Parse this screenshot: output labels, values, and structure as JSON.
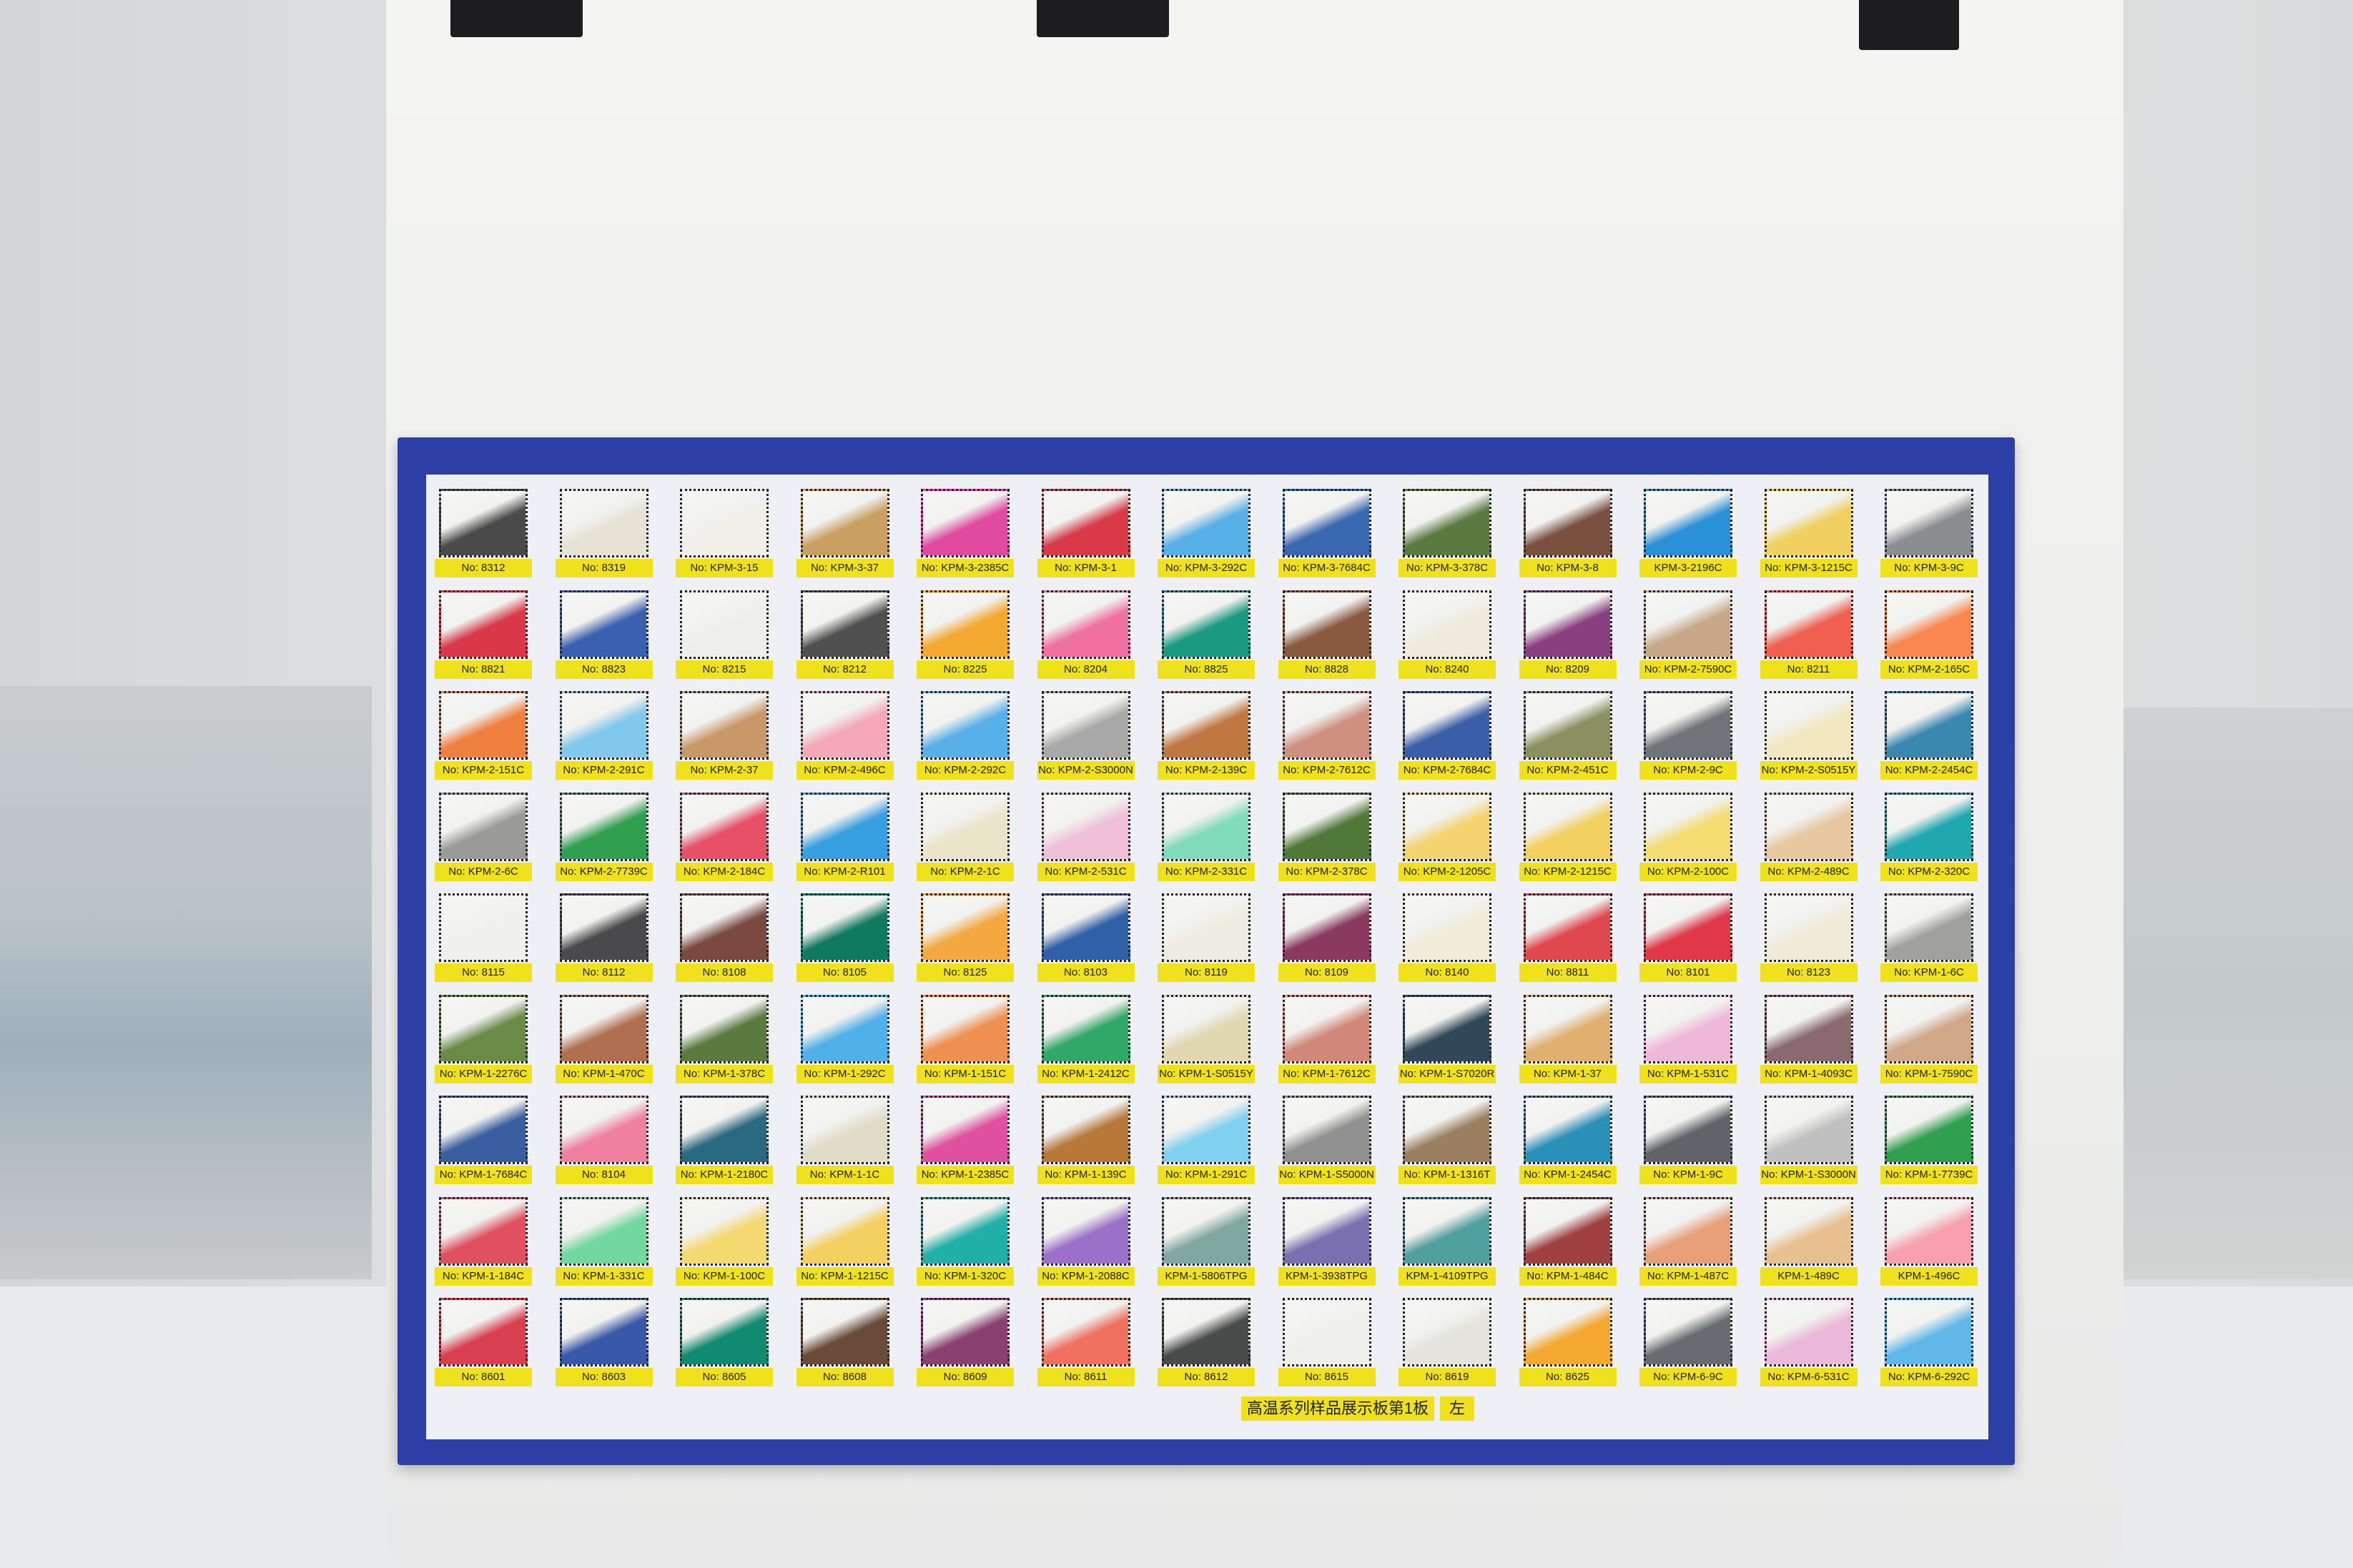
{
  "scene": {
    "frame_color": "#2c3fa6",
    "label_color": "#efe21c",
    "board_color": "#eef0f6"
  },
  "caption": {
    "title": "高温系列样品展示板第1板",
    "side": "左"
  },
  "rows": [
    [
      [
        "No: 8312",
        "#4a4a4a"
      ],
      [
        "No: 8319",
        "#e6e2d6"
      ],
      [
        "No: KPM-3-15",
        "#f0efe8"
      ],
      [
        "No: KPM-3-37",
        "#c9a060"
      ],
      [
        "No: KPM-3-2385C",
        "#e04aa0"
      ],
      [
        "No: KPM-3-1",
        "#d83a48"
      ],
      [
        "No: KPM-3-292C",
        "#58b0e8"
      ],
      [
        "No: KPM-3-7684C",
        "#3a68b0"
      ],
      [
        "No: KPM-3-378C",
        "#5a7a40"
      ],
      [
        "No: KPM-3-8",
        "#7a5040"
      ],
      [
        "KPM-3-2196C",
        "#2a90d8"
      ],
      [
        "No: KPM-3-1215C",
        "#f0d060"
      ],
      [
        "No: KPM-3-9C",
        "#8a8e90"
      ]
    ],
    [
      [
        "No: 8821",
        "#d83848"
      ],
      [
        "No: 8823",
        "#3a60b0"
      ],
      [
        "No: 8215",
        "#eeeeea"
      ],
      [
        "No: 8212",
        "#505050"
      ],
      [
        "No: 8225",
        "#f4a830"
      ],
      [
        "No: 8204",
        "#f070a0"
      ],
      [
        "No: 8825",
        "#1a9a80"
      ],
      [
        "No: 8828",
        "#8a5a40"
      ],
      [
        "No: 8240",
        "#eeeade"
      ],
      [
        "No: 8209",
        "#8a4080"
      ],
      [
        "No: KPM-2-7590C",
        "#c8a888"
      ],
      [
        "No: 8211",
        "#f06050"
      ],
      [
        "No: KPM-2-165C",
        "#f88850"
      ]
    ],
    [
      [
        "No: KPM-2-151C",
        "#f08040"
      ],
      [
        "No: KPM-2-291C",
        "#80c8ec"
      ],
      [
        "No: KPM-2-37",
        "#c89868"
      ],
      [
        "No: KPM-2-496C",
        "#f4a8b8"
      ],
      [
        "No: KPM-2-292C",
        "#58b0e8"
      ],
      [
        "No: KPM-2-S3000N",
        "#a8a8a8"
      ],
      [
        "No: KPM-2-139C",
        "#c07840"
      ],
      [
        "No: KPM-2-7612C",
        "#d09080"
      ],
      [
        "No: KPM-2-7684C",
        "#3a5ea8"
      ],
      [
        "No: KPM-2-451C",
        "#8a9060"
      ],
      [
        "No: KPM-2-9C",
        "#707478"
      ],
      [
        "No: KPM-2-S0515Y",
        "#f2e8c0"
      ],
      [
        "No: KPM-2-2454C",
        "#3a88b0"
      ]
    ],
    [
      [
        "No: KPM-2-6C",
        "#9a9a98"
      ],
      [
        "No: KPM-2-7739C",
        "#30a050"
      ],
      [
        "No: KPM-2-184C",
        "#e85068"
      ],
      [
        "No: KPM-2-R101",
        "#38a0e0"
      ],
      [
        "No: KPM-2-1C",
        "#ece4c8"
      ],
      [
        "No: KPM-2-531C",
        "#f0c0d8"
      ],
      [
        "No: KPM-2-331C",
        "#80dcb8"
      ],
      [
        "No: KPM-2-378C",
        "#507838"
      ],
      [
        "No: KPM-2-1205C",
        "#f4d470"
      ],
      [
        "No: KPM-2-1215C",
        "#f4d060"
      ],
      [
        "No: KPM-2-100C",
        "#f4dc70"
      ],
      [
        "No: KPM-2-489C",
        "#e8c8a0"
      ],
      [
        "No: KPM-2-320C",
        "#20a8b0"
      ]
    ],
    [
      [
        "No: 8115",
        "#f0f0ee"
      ],
      [
        "No: 8112",
        "#4a4a4c"
      ],
      [
        "No: 8108",
        "#7a4a40"
      ],
      [
        "No: 8105",
        "#107a60"
      ],
      [
        "No: 8125",
        "#f4a840"
      ],
      [
        "No: 8103",
        "#3060a8"
      ],
      [
        "No: 8119",
        "#eeece0"
      ],
      [
        "No: 8109",
        "#8a3a60"
      ],
      [
        "No: 8140",
        "#f0ecd8"
      ],
      [
        "No: 8811",
        "#e04850"
      ],
      [
        "No: 8101",
        "#e03848"
      ],
      [
        "No: 8123",
        "#f0ead8"
      ],
      [
        "No: KPM-1-6C",
        "#a0a09c"
      ]
    ],
    [
      [
        "No: KPM-1-2276C",
        "#6a8a48"
      ],
      [
        "No: KPM-1-470C",
        "#b07050"
      ],
      [
        "No: KPM-1-378C",
        "#5a7a40"
      ],
      [
        "No: KPM-1-292C",
        "#50b0e8"
      ],
      [
        "No: KPM-1-151C",
        "#f09050"
      ],
      [
        "No: KPM-1-2412C",
        "#30a868"
      ],
      [
        "No: KPM-1-S0515Y",
        "#e0d8b0"
      ],
      [
        "No: KPM-1-7612C",
        "#d08878"
      ],
      [
        "No: KPM-1-S7020R",
        "#304858"
      ],
      [
        "No: KPM-1-37",
        "#e0b070"
      ],
      [
        "No: KPM-1-531C",
        "#f0b8d8"
      ],
      [
        "No: KPM-1-4093C",
        "#8a6a70"
      ],
      [
        "No: KPM-1-7590C",
        "#d0a888"
      ]
    ],
    [
      [
        "No: KPM-1-7684C",
        "#3a5ea0"
      ],
      [
        "No: 8104",
        "#f080a0"
      ],
      [
        "No: KPM-1-2180C",
        "#2a6a80"
      ],
      [
        "No: KPM-1-1C",
        "#e0dcc8"
      ],
      [
        "No: KPM-1-2385C",
        "#e050a0"
      ],
      [
        "No: KPM-1-139C",
        "#b87838"
      ],
      [
        "No: KPM-1-291C",
        "#80d0f0"
      ],
      [
        "No: KPM-1-S5000N",
        "#909090"
      ],
      [
        "No: KPM-1-1316T",
        "#9a8060"
      ],
      [
        "No: KPM-1-2454C",
        "#2a90b8"
      ],
      [
        "No: KPM-1-9C",
        "#606468"
      ],
      [
        "No: KPM-1-S3000N",
        "#c0c0c0"
      ],
      [
        "No: KPM-1-7739C",
        "#30a050"
      ]
    ],
    [
      [
        "No: KPM-1-184C",
        "#e05060"
      ],
      [
        "No: KPM-1-331C",
        "#70d8a0"
      ],
      [
        "No: KPM-1-100C",
        "#f4d870"
      ],
      [
        "No: KPM-1-1215C",
        "#f4d060"
      ],
      [
        "No: KPM-1-320C",
        "#20b0a8"
      ],
      [
        "No: KPM-1-2088C",
        "#9a70c8"
      ],
      [
        "KPM-1-5806TPG",
        "#80a8a0"
      ],
      [
        "KPM-1-3938TPG",
        "#7a70b0"
      ],
      [
        "KPM-1-4109TPG",
        "#50a0a0"
      ],
      [
        "No: KPM-1-484C",
        "#a04040"
      ],
      [
        "No: KPM-1-487C",
        "#e8a078"
      ],
      [
        "KPM-1-489C",
        "#e8c090"
      ],
      [
        "KPM-1-496C",
        "#f8a0b0"
      ]
    ],
    [
      [
        "No: 8601",
        "#d84050"
      ],
      [
        "No: 8603",
        "#3a58a8"
      ],
      [
        "No: 8605",
        "#108a70"
      ],
      [
        "No: 8608",
        "#6a4a38"
      ],
      [
        "No: 8609",
        "#8a4070"
      ],
      [
        "No: 8611",
        "#f07060"
      ],
      [
        "No: 8612",
        "#4a4c4c"
      ],
      [
        "No: 8615",
        "#eeeeea"
      ],
      [
        "No: 8619",
        "#e4e4dc"
      ],
      [
        "No: 8625",
        "#f4a830"
      ],
      [
        "No: KPM-6-9C",
        "#686c70"
      ],
      [
        "No: KPM-6-531C",
        "#eab8d8"
      ],
      [
        "No: KPM-6-292C",
        "#60b8e8"
      ]
    ]
  ]
}
